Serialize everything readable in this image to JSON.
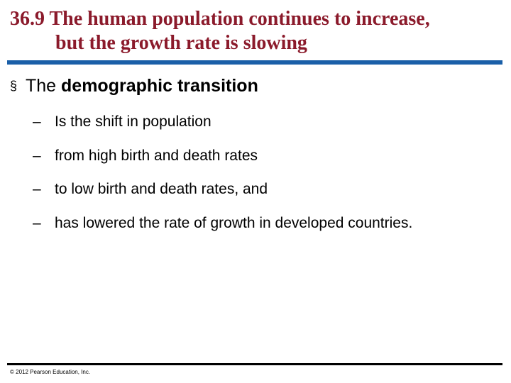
{
  "slide": {
    "title_line1": "36.9 The human population continues to increase,",
    "title_line2": "but the growth rate is slowing",
    "bullet": {
      "marker": "§",
      "prefix": "The ",
      "emphasis": "demographic transition"
    },
    "sub_bullets": [
      {
        "dash": "–",
        "text": "Is the shift in population"
      },
      {
        "dash": "–",
        "text": "from high birth and death rates"
      },
      {
        "dash": "–",
        "text": "to low birth and death rates, and"
      },
      {
        "dash": "–",
        "text": "has lowered the rate of growth in developed countries."
      }
    ],
    "copyright": "© 2012 Pearson Education, Inc."
  },
  "colors": {
    "title": "#8b1a2b",
    "top_rule": "#1a5fa8",
    "bottom_rule": "#000000",
    "text": "#000000"
  }
}
